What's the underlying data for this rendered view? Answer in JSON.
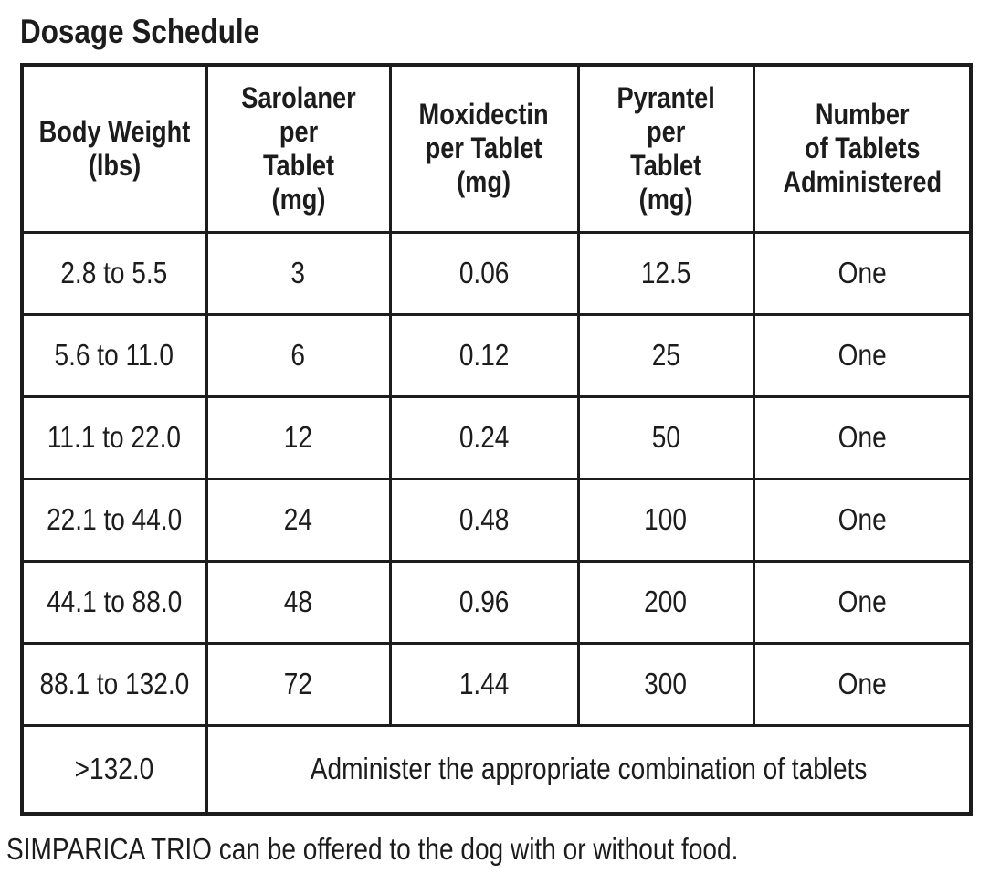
{
  "page": {
    "title": "Dosage Schedule",
    "footer_note": "SIMPARICA TRIO can be offered to the dog with or without food."
  },
  "dosage_table": {
    "headers": [
      "Body Weight\n(lbs)",
      "Sarolaner per\nTablet\n(mg)",
      "Moxidectin\nper Tablet\n(mg)",
      "Pyrantel\nper\nTablet\n(mg)",
      "Number\nof Tablets\nAdministered"
    ],
    "rows": [
      [
        "2.8 to 5.5",
        "3",
        "0.06",
        "12.5",
        "One"
      ],
      [
        "5.6 to 11.0",
        "6",
        "0.12",
        "25",
        "One"
      ],
      [
        "11.1 to 22.0",
        "12",
        "0.24",
        "50",
        "One"
      ],
      [
        "22.1 to 44.0",
        "24",
        "0.48",
        "100",
        "One"
      ],
      [
        "44.1 to 88.0",
        "48",
        "0.96",
        "200",
        "One"
      ],
      [
        "88.1 to 132.0",
        "72",
        "1.44",
        "300",
        "One"
      ]
    ],
    "overflow_row": {
      "weight": ">132.0",
      "instruction": "Administer the appropriate combination of tablets"
    },
    "colors": {
      "text": "#1c1c1c",
      "border": "#1c1c1c",
      "background": "#ffffff"
    }
  }
}
